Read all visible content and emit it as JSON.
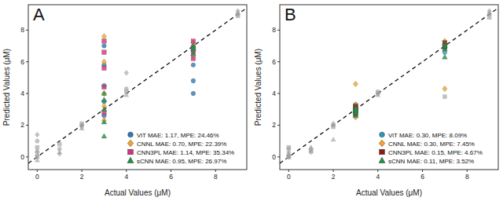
{
  "chart_data": [
    {
      "type": "scatter",
      "title": "A",
      "x_label": "Actual Values (μM)",
      "y_label": "Predicted Values (μM)",
      "xlim": [
        -0.4,
        9.4
      ],
      "ylim": [
        -0.8,
        9.6
      ],
      "xticks": [
        0,
        2,
        4,
        6,
        8
      ],
      "yticks": [
        0,
        2,
        4,
        6,
        8
      ],
      "grid": false,
      "legend": "lower right",
      "series": [
        {
          "name": "ViT MAE: 1.17, MPE: 24.46%",
          "color": "#2c7bb6",
          "marker": "circle",
          "x": [
            0,
            0,
            1,
            2,
            3,
            3,
            3,
            3,
            3,
            4,
            7,
            7,
            7,
            7,
            9
          ],
          "values": [
            0.3,
            1.0,
            0.5,
            2.0,
            2.6,
            3.5,
            4.5,
            5.8,
            7.0,
            4.3,
            4.0,
            4.8,
            5.8,
            6.7,
            9.0
          ],
          "colors": [
            "#a0a0a0",
            "#a0a0a0",
            "#a0a0a0",
            "#a0a0a0",
            "#2c7bb6",
            "#2c7bb6",
            "#2c7bb6",
            "#2c7bb6",
            "#2c7bb6",
            "#a0a0a0",
            "#2c7bb6",
            "#2c7bb6",
            "#2c7bb6",
            "#2c7bb6",
            "#a0a0a0"
          ]
        },
        {
          "name": "CNNL MAE: 0.70, MPE: 22.39%",
          "color": "#f5a623",
          "marker": "diamond",
          "x": [
            0,
            0,
            1,
            2,
            3,
            3,
            3,
            3,
            3,
            4,
            7,
            7,
            7,
            7,
            9
          ],
          "values": [
            0.1,
            1.4,
            0.2,
            1.9,
            2.3,
            3.2,
            4.0,
            6.0,
            7.6,
            5.3,
            6.4,
            6.8,
            7.0,
            7.2,
            9.2
          ],
          "colors": [
            "#a0a0a0",
            "#a0a0a0",
            "#a0a0a0",
            "#a0a0a0",
            "#f5a623",
            "#f5a623",
            "#f5a623",
            "#f5a623",
            "#f5a623",
            "#a0a0a0",
            "#f5a623",
            "#f5a623",
            "#f5a623",
            "#f5a623",
            "#a0a0a0"
          ]
        },
        {
          "name": "CNN3PL MAE: 1.14, MPE: 35.34%",
          "color": "#d6317a",
          "marker": "square",
          "x": [
            0,
            0,
            1,
            2,
            3,
            3,
            3,
            3,
            3,
            4,
            7,
            7,
            7,
            7,
            9
          ],
          "values": [
            0.0,
            0.6,
            0.8,
            2.1,
            2.8,
            4.4,
            5.6,
            6.6,
            7.3,
            4.1,
            6.2,
            6.6,
            6.9,
            7.3,
            8.9
          ],
          "colors": [
            "#a0a0a0",
            "#a0a0a0",
            "#a0a0a0",
            "#a0a0a0",
            "#d6317a",
            "#d6317a",
            "#d6317a",
            "#d6317a",
            "#d6317a",
            "#a0a0a0",
            "#d6317a",
            "#d6317a",
            "#d6317a",
            "#d6317a",
            "#a0a0a0"
          ]
        },
        {
          "name": "sCNN MAE: 0.95, MPE: 26.97%",
          "color": "#1a9641",
          "marker": "triangle",
          "x": [
            0,
            0,
            1,
            2,
            3,
            3,
            3,
            3,
            3,
            4,
            7,
            7,
            7,
            7,
            9
          ],
          "values": [
            -0.2,
            0.4,
            0.3,
            1.8,
            1.3,
            2.2,
            3.0,
            3.6,
            4.0,
            3.9,
            6.5,
            6.8,
            7.0,
            6.9,
            9.1
          ],
          "colors": [
            "#a0a0a0",
            "#a0a0a0",
            "#a0a0a0",
            "#a0a0a0",
            "#1a9641",
            "#1a9641",
            "#1a9641",
            "#1a9641",
            "#1a9641",
            "#a0a0a0",
            "#1a9641",
            "#1a9641",
            "#1a9641",
            "#1a9641",
            "#a0a0a0"
          ]
        }
      ]
    },
    {
      "type": "scatter",
      "title": "B",
      "x_label": "Actual Values (μM)",
      "y_label": "Predicted Values (μM)",
      "xlim": [
        -0.4,
        9.4
      ],
      "ylim": [
        -0.8,
        9.6
      ],
      "xticks": [
        0,
        2,
        4,
        6,
        8
      ],
      "yticks": [
        0,
        2,
        4,
        6,
        8
      ],
      "grid": false,
      "legend": "lower right",
      "series": [
        {
          "name": "ViT MAE: 0.30, MPE: 8.09%",
          "color": "#2a9bb5",
          "marker": "circle",
          "x": [
            0,
            0,
            1,
            2,
            3,
            3,
            3,
            3,
            3,
            4,
            7,
            7,
            7,
            7,
            9
          ],
          "values": [
            0.1,
            0.5,
            0.3,
            2.0,
            2.6,
            2.8,
            3.0,
            3.1,
            3.3,
            4.0,
            6.6,
            6.9,
            7.0,
            7.1,
            9.0
          ],
          "colors": [
            "#a0a0a0",
            "#a0a0a0",
            "#a0a0a0",
            "#a0a0a0",
            "#2a9bb5",
            "#2a9bb5",
            "#2a9bb5",
            "#2a9bb5",
            "#2a9bb5",
            "#a0a0a0",
            "#2a9bb5",
            "#2a9bb5",
            "#2a9bb5",
            "#2a9bb5",
            "#a0a0a0"
          ]
        },
        {
          "name": "CNNL MAE: 0.30, MPE: 7.45%",
          "color": "#f5a623",
          "marker": "diamond",
          "x": [
            0,
            0,
            1,
            2,
            3,
            3,
            3,
            3,
            3,
            4,
            7,
            7,
            7,
            7,
            9
          ],
          "values": [
            0.0,
            0.3,
            0.5,
            2.1,
            2.5,
            2.9,
            3.0,
            3.3,
            4.6,
            4.0,
            4.3,
            6.9,
            7.1,
            7.3,
            9.2
          ],
          "colors": [
            "#a0a0a0",
            "#a0a0a0",
            "#a0a0a0",
            "#a0a0a0",
            "#f5a623",
            "#f5a623",
            "#f5a623",
            "#f5a623",
            "#f5a623",
            "#a0a0a0",
            "#f5a623",
            "#f5a623",
            "#f5a623",
            "#f5a623",
            "#a0a0a0"
          ]
        },
        {
          "name": "CNN3PL MAE: 0.15, MPE: 4.67%",
          "color": "#8b1a1a",
          "marker": "square",
          "x": [
            0,
            0,
            1,
            2,
            3,
            3,
            3,
            3,
            3,
            4,
            7,
            7,
            7,
            7,
            9
          ],
          "values": [
            0.0,
            0.6,
            0.4,
            1.9,
            2.7,
            2.9,
            3.0,
            3.1,
            3.2,
            4.1,
            3.8,
            6.9,
            7.0,
            7.2,
            8.8
          ],
          "colors": [
            "#a0a0a0",
            "#a0a0a0",
            "#a0a0a0",
            "#a0a0a0",
            "#8b1a1a",
            "#8b1a1a",
            "#8b1a1a",
            "#8b1a1a",
            "#8b1a1a",
            "#a0a0a0",
            "#a0a0a0",
            "#8b1a1a",
            "#8b1a1a",
            "#8b1a1a",
            "#a0a0a0"
          ]
        },
        {
          "name": "sCNN MAE: 0.11, MPE: 3.52%",
          "color": "#1a9641",
          "marker": "triangle",
          "x": [
            0,
            0,
            1,
            2,
            3,
            3,
            3,
            3,
            3,
            4,
            7,
            7,
            7,
            7,
            9
          ],
          "values": [
            0.0,
            0.2,
            0.6,
            1.1,
            2.6,
            2.8,
            2.9,
            3.0,
            3.1,
            3.9,
            6.3,
            6.8,
            7.0,
            7.1,
            9.1
          ],
          "colors": [
            "#a0a0a0",
            "#a0a0a0",
            "#a0a0a0",
            "#a0a0a0",
            "#1a9641",
            "#1a9641",
            "#1a9641",
            "#1a9641",
            "#1a9641",
            "#a0a0a0",
            "#1a9641",
            "#1a9641",
            "#1a9641",
            "#1a9641",
            "#a0a0a0"
          ]
        }
      ]
    }
  ]
}
